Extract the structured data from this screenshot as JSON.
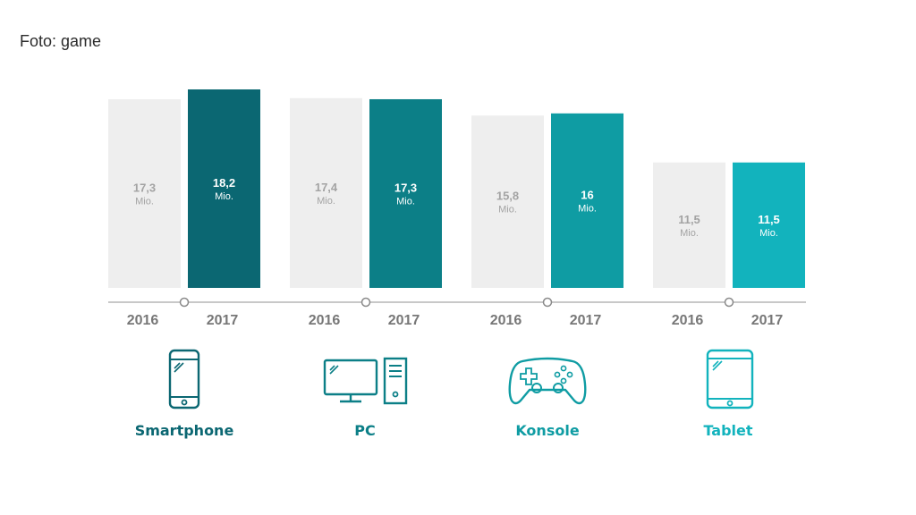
{
  "caption": "Foto: game",
  "chart_data": {
    "type": "bar",
    "title": "",
    "xlabel": "",
    "ylabel": "",
    "categories": [
      "Smartphone",
      "PC",
      "Konsole",
      "Tablet"
    ],
    "years": [
      "2016",
      "2017"
    ],
    "unit": "Mio.",
    "series": [
      {
        "name": "2016",
        "values": [
          17.3,
          17.4,
          15.8,
          11.5
        ],
        "labels": [
          "17,3",
          "17,4",
          "15,8",
          "11,5"
        ]
      },
      {
        "name": "2017",
        "values": [
          18.2,
          17.3,
          16,
          11.5
        ],
        "labels": [
          "18,2",
          "17,3",
          "16",
          "11,5"
        ]
      }
    ],
    "ylim": [
      0,
      18.2
    ],
    "colors": {
      "2016": "#eeeeee",
      "2017": [
        "#0b6772",
        "#0c7f87",
        "#0f9ca3",
        "#12b3bd"
      ],
      "label_2016": "#a3a3a3",
      "label_2017": "#ffffff",
      "axis": "#c8c8c8"
    }
  },
  "categories": [
    {
      "name": "Smartphone",
      "icon": "smartphone-icon",
      "color": "#0b6772"
    },
    {
      "name": "PC",
      "icon": "pc-icon",
      "color": "#0c7f87"
    },
    {
      "name": "Konsole",
      "icon": "gamepad-icon",
      "color": "#0f9ca3"
    },
    {
      "name": "Tablet",
      "icon": "tablet-icon",
      "color": "#12b3bd"
    }
  ]
}
